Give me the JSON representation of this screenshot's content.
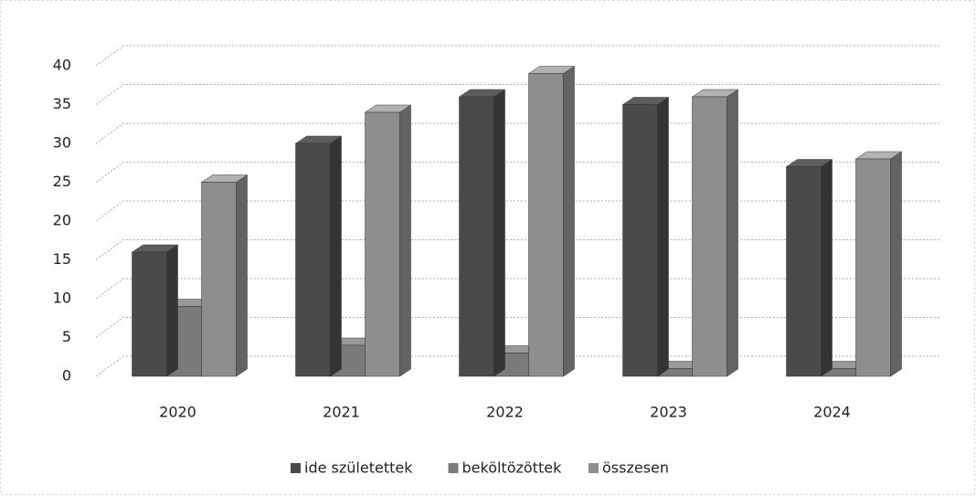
{
  "chart_data": {
    "type": "bar3d",
    "categories": [
      "2020",
      "2021",
      "2022",
      "2023",
      "2024"
    ],
    "series": [
      {
        "name": "ide születettek",
        "color": "#4a4a4a",
        "values": [
          16,
          30,
          36,
          35,
          27
        ]
      },
      {
        "name": "beköltözöttek",
        "color": "#7a7a7a",
        "values": [
          9,
          4,
          3,
          1,
          1
        ]
      },
      {
        "name": "összesen",
        "color": "#8e8e8e",
        "values": [
          25,
          34,
          39,
          36,
          28
        ]
      }
    ],
    "ylim": [
      0,
      40
    ],
    "yticks": [
      0,
      5,
      10,
      15,
      20,
      25,
      30,
      35,
      40
    ],
    "grid": true,
    "legend": "bottom"
  }
}
